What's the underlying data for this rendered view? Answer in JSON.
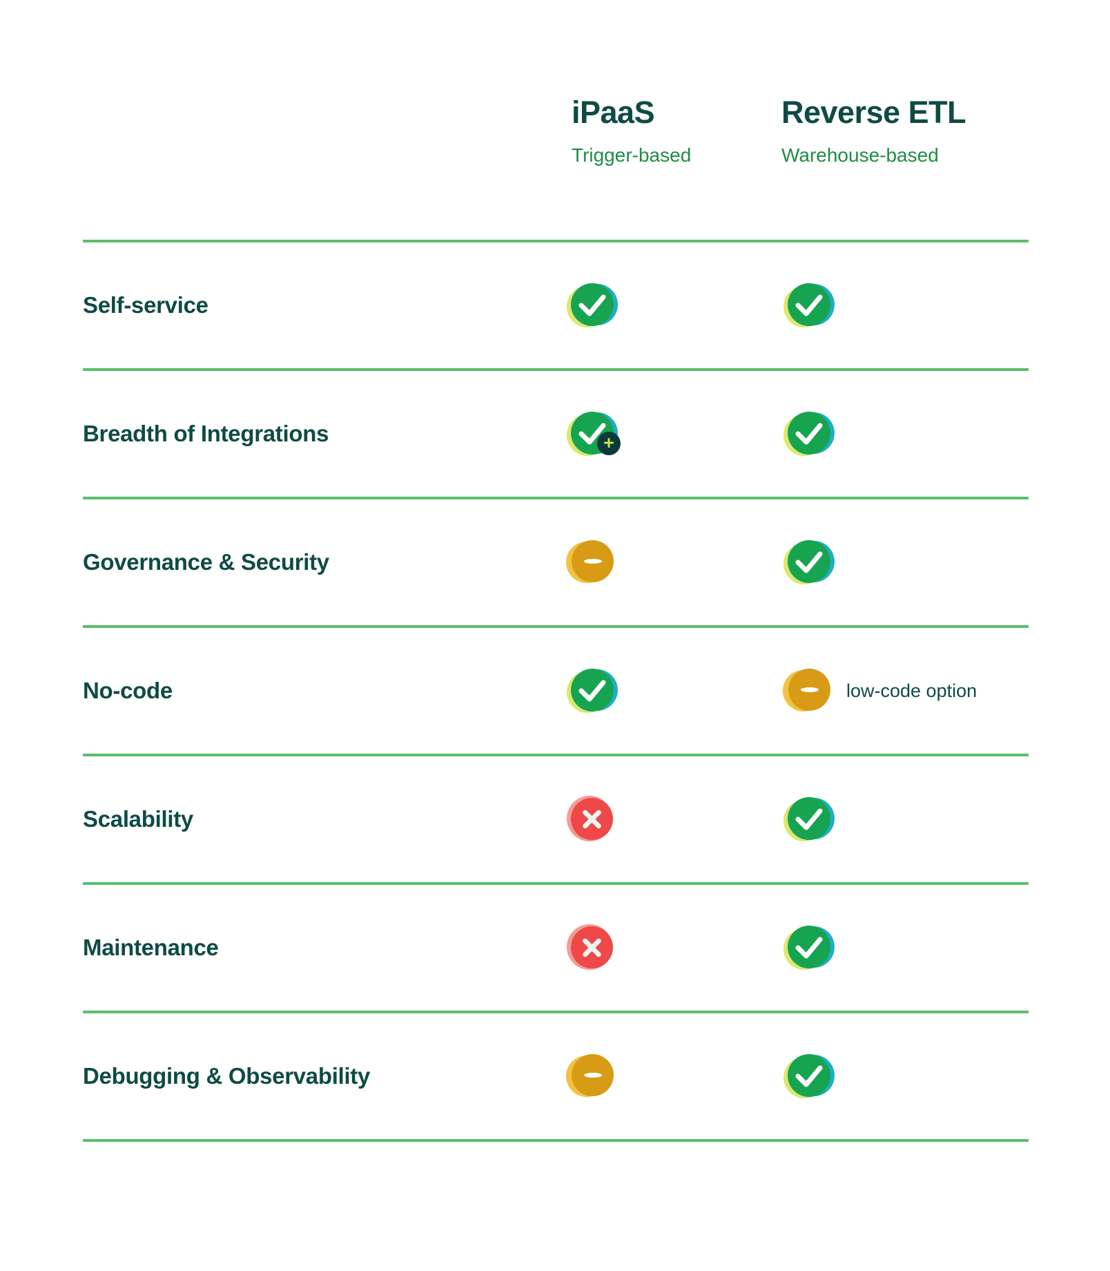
{
  "header": {
    "columns": [
      {
        "title": "iPaaS",
        "subtitle": "Trigger-based"
      },
      {
        "title": "Reverse ETL",
        "subtitle": "Warehouse-based"
      }
    ]
  },
  "table": {
    "rows": [
      {
        "label": "Self-service",
        "cells": [
          {
            "icon": "check-icon"
          },
          {
            "icon": "check-icon"
          }
        ]
      },
      {
        "label": "Breadth of Integrations",
        "cells": [
          {
            "icon": "check-plus-icon"
          },
          {
            "icon": "check-icon"
          }
        ]
      },
      {
        "label": "Governance & Security",
        "cells": [
          {
            "icon": "minus-icon"
          },
          {
            "icon": "check-icon"
          }
        ]
      },
      {
        "label": "No-code",
        "cells": [
          {
            "icon": "check-icon"
          },
          {
            "icon": "minus-icon",
            "note": "low-code option"
          }
        ]
      },
      {
        "label": "Scalability",
        "cells": [
          {
            "icon": "cross-icon"
          },
          {
            "icon": "check-icon"
          }
        ]
      },
      {
        "label": "Maintenance",
        "cells": [
          {
            "icon": "cross-icon"
          },
          {
            "icon": "check-icon"
          }
        ]
      },
      {
        "label": "Debugging & Observability",
        "cells": [
          {
            "icon": "minus-icon"
          },
          {
            "icon": "check-icon"
          }
        ]
      }
    ],
    "icon_legend": {
      "check-icon": "yes",
      "check-plus-icon": "yes-plus",
      "minus-icon": "partial",
      "cross-icon": "no"
    },
    "plus_badge_glyph": "+"
  },
  "colors": {
    "heading": "#0E4B44",
    "subtitle": "#1E8C44",
    "divider": "#5BBE6C",
    "check_green": "#17A451",
    "check_lime": "#DBE96D",
    "check_cyan": "#21ADC3",
    "minus_amber": "#D89B16",
    "minus_gold": "#F2C240",
    "cross_red": "#EE4848",
    "cross_halo": "#F49B94",
    "badge_teal": "#0C3A38",
    "badge_plus": "#C9E24B"
  }
}
